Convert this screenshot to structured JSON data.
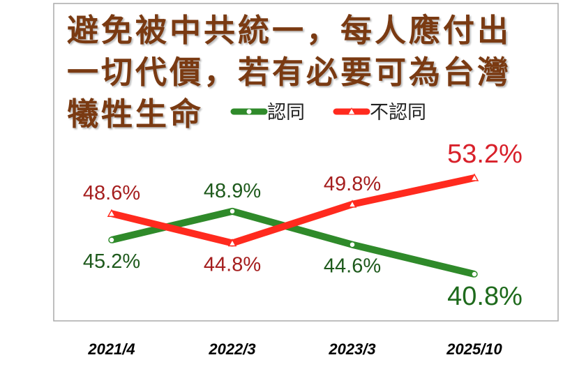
{
  "chart_data": {
    "type": "line",
    "title": "避免被中共統一，每人應付出一切代價，若有必要可為台灣犧牲生命",
    "categories": [
      "2021/4",
      "2022/3",
      "2023/3",
      "2025/10"
    ],
    "series": [
      {
        "name": "認同",
        "color": "#2f8a2a",
        "values": [
          45.2,
          48.9,
          44.6,
          40.8
        ],
        "value_labels": [
          "45.2%",
          "48.9%",
          "44.6%",
          "40.8%"
        ]
      },
      {
        "name": "不認同",
        "color": "#ff2a1e",
        "values": [
          48.6,
          44.8,
          49.8,
          53.2
        ],
        "value_labels": [
          "48.6%",
          "44.8%",
          "49.8%",
          "53.2%"
        ]
      }
    ]
  }
}
